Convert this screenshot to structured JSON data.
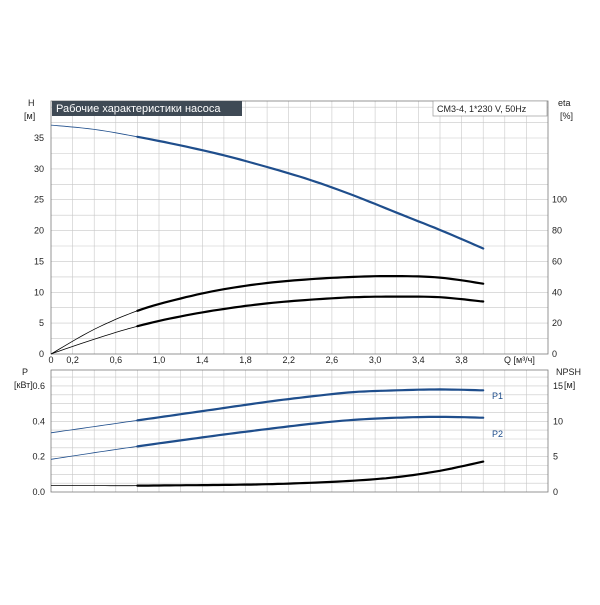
{
  "colors": {
    "blue": "#1f4e8c",
    "black": "#000000",
    "grid": "#c8c8c8",
    "title_background": "#3f4a55"
  },
  "chart_data": [
    {
      "type": "line",
      "title": "Рабочие характеристики насоса",
      "info": "CM3-4, 1*230 V, 50Hz",
      "xlabel": "Q [м³/ч]",
      "x_ticks": [
        "0",
        "0,2",
        "0,6",
        "1,0",
        "1,4",
        "1,8",
        "2,2",
        "2,6",
        "3,0",
        "3,4",
        "3,8"
      ],
      "xlim": [
        0,
        4.6
      ],
      "grid": true,
      "y_left": {
        "label_top": "H",
        "label_unit": "[м]",
        "ticks": [
          "0",
          "5",
          "10",
          "15",
          "20",
          "25",
          "30",
          "35"
        ],
        "lim": [
          0,
          41
        ]
      },
      "y_right": {
        "label_top": "eta",
        "label_unit": "[%]",
        "ticks": [
          "0",
          "20",
          "40",
          "60",
          "80",
          "100"
        ],
        "lim": [
          0,
          164
        ]
      },
      "series": [
        {
          "axis": "left",
          "color": "#1f4e8c",
          "x": [
            0,
            0.4,
            0.8,
            1.2,
            1.6,
            2.0,
            2.4,
            2.8,
            3.2,
            3.6,
            4.0,
            4.2
          ],
          "y": [
            37.1,
            36.4,
            35.2,
            33.8,
            32.2,
            30.3,
            28.2,
            25.7,
            22.9,
            20.1,
            17.1,
            null
          ]
        },
        {
          "axis": "right",
          "color": "#000000",
          "x": [
            0,
            0.4,
            0.8,
            1.2,
            1.6,
            2.0,
            2.4,
            2.8,
            3.2,
            3.6,
            4.0
          ],
          "y": [
            0,
            16,
            28,
            36,
            42,
            46,
            48.5,
            50,
            50.5,
            49.5,
            45.6
          ]
        },
        {
          "axis": "left",
          "color": "#000000",
          "x": [
            0,
            0.4,
            0.8,
            1.2,
            1.6,
            2.0,
            2.4,
            2.8,
            3.2,
            3.6,
            4.0
          ],
          "y": [
            0,
            2.4,
            4.5,
            6.1,
            7.3,
            8.2,
            8.8,
            9.2,
            9.3,
            9.2,
            8.5
          ]
        }
      ]
    },
    {
      "type": "line",
      "xlim": [
        0,
        4.6
      ],
      "grid": true,
      "y_left": {
        "label_top": "P",
        "label_unit": "[кВт]",
        "ticks": [
          "0.0",
          "0.2",
          "0.4",
          "0.6"
        ],
        "lim": [
          0,
          0.69
        ]
      },
      "y_right": {
        "label_top": "NPSH",
        "label_unit": "[м]",
        "ticks": [
          "0",
          "5",
          "10",
          "15"
        ],
        "lim": [
          0,
          17.25
        ]
      },
      "series": [
        {
          "name": "P1",
          "axis": "left",
          "color": "#1f4e8c",
          "x": [
            0,
            0.4,
            0.8,
            1.2,
            1.6,
            2.0,
            2.4,
            2.8,
            3.2,
            3.6,
            4.0
          ],
          "y": [
            0.335,
            0.37,
            0.405,
            0.44,
            0.475,
            0.51,
            0.54,
            0.565,
            0.575,
            0.58,
            0.575
          ]
        },
        {
          "name": "P2",
          "axis": "left",
          "color": "#1f4e8c",
          "x": [
            0,
            0.4,
            0.8,
            1.2,
            1.6,
            2.0,
            2.4,
            2.8,
            3.2,
            3.6,
            4.0
          ],
          "y": [
            0.185,
            0.222,
            0.258,
            0.292,
            0.325,
            0.356,
            0.385,
            0.408,
            0.42,
            0.425,
            0.42
          ]
        },
        {
          "axis": "right",
          "color": "#000000",
          "x": [
            0,
            0.4,
            0.8,
            1.2,
            1.6,
            2.0,
            2.4,
            2.8,
            3.2,
            3.6,
            4.0
          ],
          "y": [
            0.9,
            0.9,
            0.9,
            0.95,
            1.0,
            1.1,
            1.3,
            1.6,
            2.1,
            3.0,
            4.3
          ]
        }
      ]
    }
  ]
}
